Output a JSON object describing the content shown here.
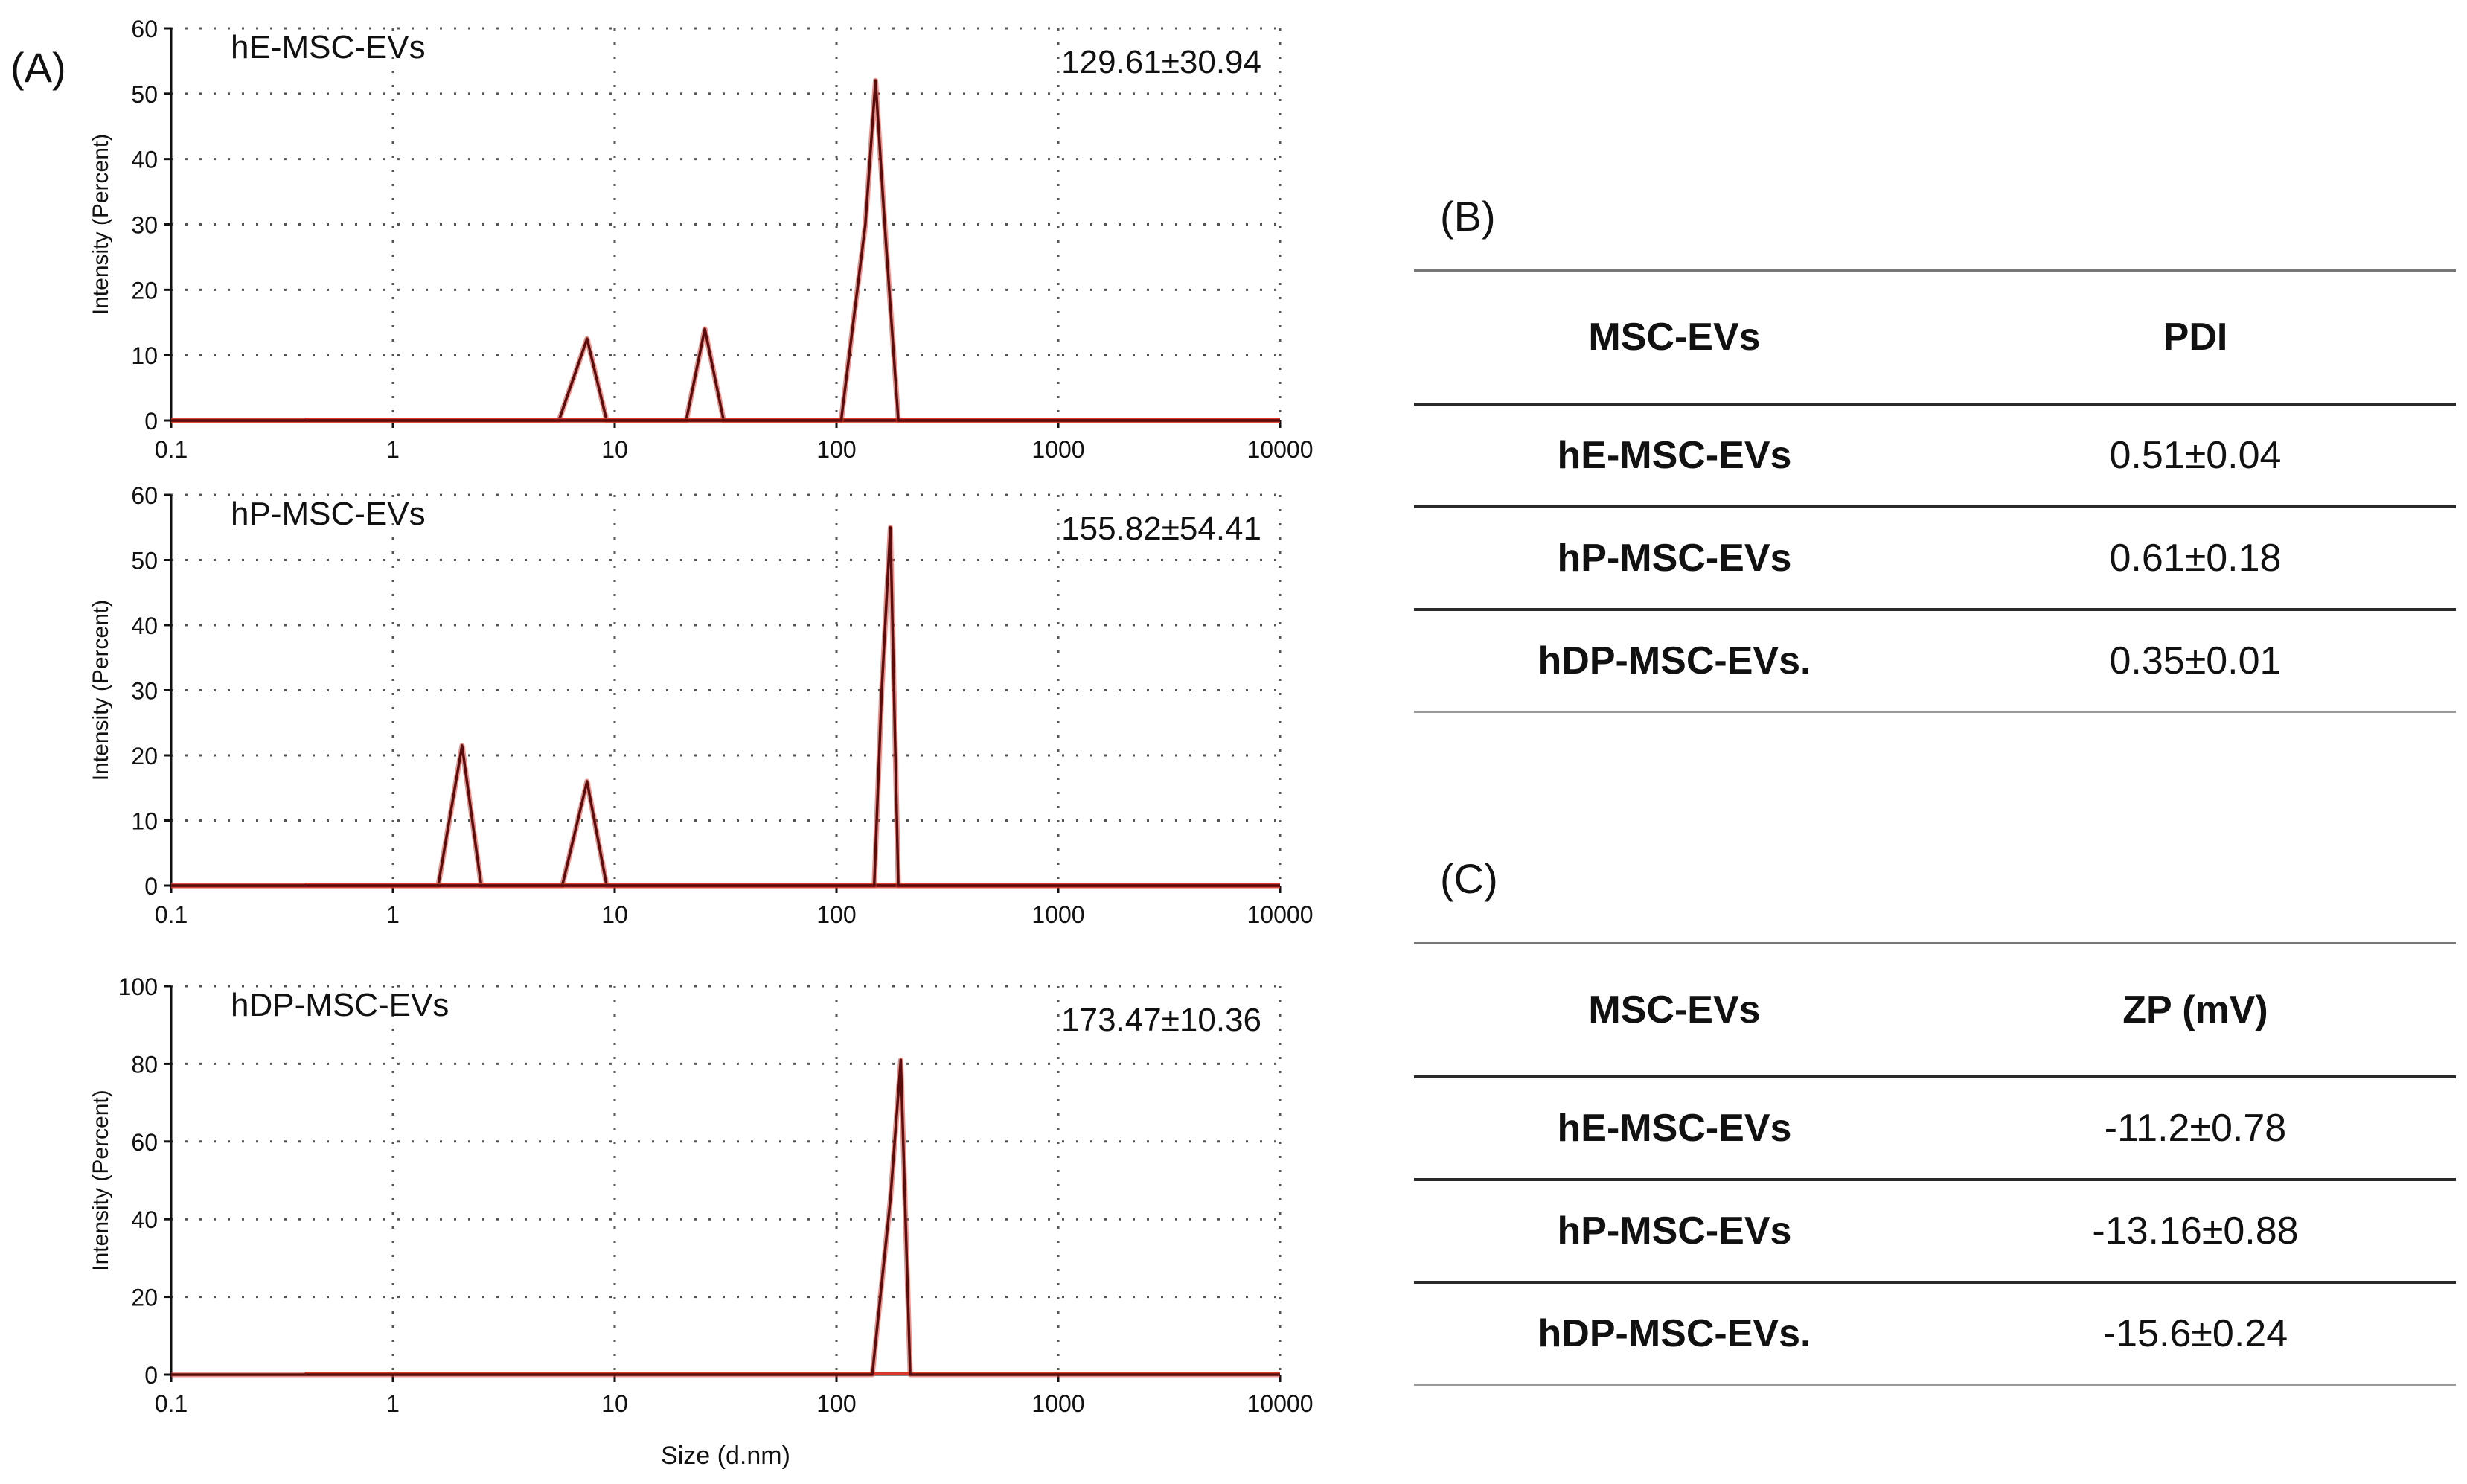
{
  "figure": {
    "label_A": "(A)",
    "label_B": "(B)",
    "label_C": "(C)"
  },
  "chart_data": [
    {
      "type": "line",
      "title": "hE-MSC-EVs",
      "annotation": "129.61±30.94",
      "ylabel": "Intensity (Percent)",
      "xlabel": "",
      "xscale": "log",
      "xlim": [
        0.1,
        10000
      ],
      "ylim": [
        0,
        60
      ],
      "yticks": [
        0,
        10,
        20,
        30,
        40,
        50,
        60
      ],
      "xticks": [
        0.1,
        1,
        10,
        100,
        1000,
        10000
      ],
      "xtick_labels": [
        "0.1",
        "1",
        "10",
        "100",
        "1000",
        "10000"
      ],
      "grid": true,
      "line_color": "#5a0d0d",
      "baseline_color": "#d9382b",
      "series": [
        {
          "x": [
            0.1,
            5.6,
            7.5,
            9.2,
            10000
          ],
          "y": [
            0,
            0,
            12.5,
            0,
            0
          ]
        },
        {
          "x": [
            0.1,
            21,
            25.5,
            31,
            10000
          ],
          "y": [
            0,
            0,
            14,
            0,
            0
          ]
        },
        {
          "x": [
            0.1,
            105,
            135,
            150,
            165,
            190,
            10000
          ],
          "y": [
            0,
            0,
            30,
            52,
            30,
            0,
            0
          ]
        }
      ]
    },
    {
      "type": "line",
      "title": "hP-MSC-EVs",
      "annotation": "155.82±54.41",
      "ylabel": "Intensity (Percent)",
      "xlabel": "",
      "xscale": "log",
      "xlim": [
        0.1,
        10000
      ],
      "ylim": [
        0,
        60
      ],
      "yticks": [
        0,
        10,
        20,
        30,
        40,
        50,
        60
      ],
      "xticks": [
        0.1,
        1,
        10,
        100,
        1000,
        10000
      ],
      "xtick_labels": [
        "0.1",
        "1",
        "10",
        "100",
        "1000",
        "10000"
      ],
      "grid": true,
      "line_color": "#5a0d0d",
      "baseline_color": "#d9382b",
      "series": [
        {
          "x": [
            0.1,
            1.6,
            2.05,
            2.5,
            10000
          ],
          "y": [
            0,
            0,
            21.5,
            0,
            0
          ]
        },
        {
          "x": [
            0.1,
            5.8,
            7.5,
            9.2,
            10000
          ],
          "y": [
            0,
            0,
            16,
            0,
            0
          ]
        },
        {
          "x": [
            0.1,
            148,
            160,
            175,
            190,
            10000
          ],
          "y": [
            0,
            0,
            30,
            55,
            0,
            0
          ]
        }
      ]
    },
    {
      "type": "line",
      "title": "hDP-MSC-EVs",
      "annotation": "173.47±10.36",
      "ylabel": "Intensity (Percent)",
      "xlabel": "Size (d.nm)",
      "xscale": "log",
      "xlim": [
        0.1,
        10000
      ],
      "ylim": [
        0,
        100
      ],
      "yticks": [
        0,
        20,
        40,
        60,
        80,
        100
      ],
      "xticks": [
        0.1,
        1,
        10,
        100,
        1000,
        10000
      ],
      "xtick_labels": [
        "0.1",
        "1",
        "10",
        "100",
        "1000",
        "10000"
      ],
      "grid": true,
      "line_color": "#5a0d0d",
      "baseline_color": "#d9382b",
      "series": [
        {
          "x": [
            0.1,
            145,
            175,
            195,
            215,
            10000
          ],
          "y": [
            0,
            0,
            45,
            81,
            0,
            0
          ]
        }
      ]
    }
  ],
  "table_pdi": {
    "headers": [
      "MSC-EVs",
      "PDI"
    ],
    "rows": [
      [
        "hE-MSC-EVs",
        "0.51±0.04"
      ],
      [
        "hP-MSC-EVs",
        "0.61±0.18"
      ],
      [
        "hDP-MSC-EVs.",
        "0.35±0.01"
      ]
    ]
  },
  "table_zp": {
    "headers": [
      "MSC-EVs",
      "ZP (mV)"
    ],
    "rows": [
      [
        "hE-MSC-EVs",
        "-11.2±0.78"
      ],
      [
        "hP-MSC-EVs",
        "-13.16±0.88"
      ],
      [
        "hDP-MSC-EVs.",
        "-15.6±0.24"
      ]
    ]
  }
}
